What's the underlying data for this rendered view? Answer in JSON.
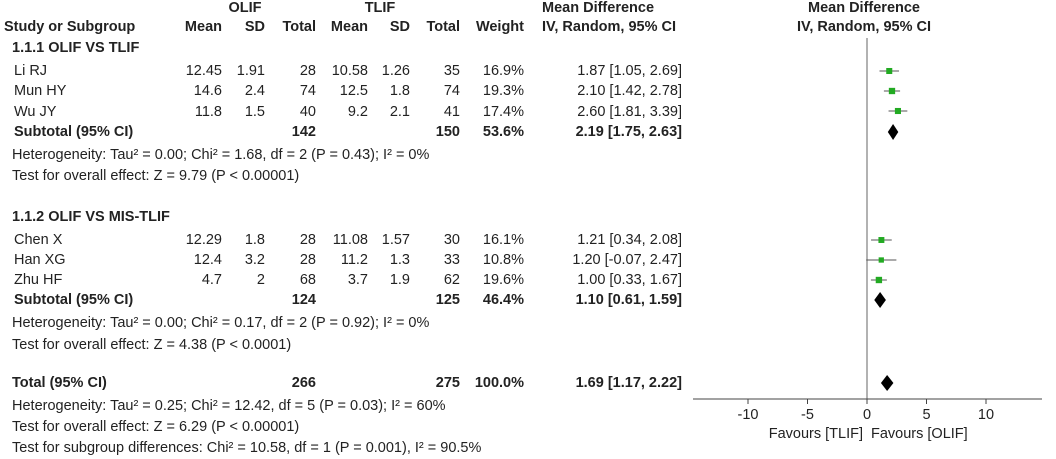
{
  "header": {
    "group1": "OLIF",
    "group2": "TLIF",
    "md_title_table": "Mean Difference",
    "md_sub_table": "IV, Random, 95% CI",
    "md_title_plot": "Mean Difference",
    "md_sub_plot": "IV, Random, 95% CI",
    "cols": {
      "study": "Study or Subgroup",
      "mean1": "Mean",
      "sd1": "SD",
      "total1": "Total",
      "mean2": "Mean",
      "sd2": "SD",
      "total2": "Total",
      "weight": "Weight"
    }
  },
  "subgroups": [
    {
      "title": "1.1.1 OLIF VS TLIF",
      "studies": [
        {
          "name": "Li RJ",
          "mean1": "12.45",
          "sd1": "1.91",
          "n1": "28",
          "mean2": "10.58",
          "sd2": "1.26",
          "n2": "35",
          "weight": "16.9%",
          "ci": "1.87 [1.05, 2.69]"
        },
        {
          "name": "Mun HY",
          "mean1": "14.6",
          "sd1": "2.4",
          "n1": "74",
          "mean2": "12.5",
          "sd2": "1.8",
          "n2": "74",
          "weight": "19.3%",
          "ci": "2.10 [1.42, 2.78]"
        },
        {
          "name": "Wu JY",
          "mean1": "11.8",
          "sd1": "1.5",
          "n1": "40",
          "mean2": "9.2",
          "sd2": "2.1",
          "n2": "41",
          "weight": "17.4%",
          "ci": "2.60 [1.81, 3.39]"
        }
      ],
      "subtotal": {
        "label": "Subtotal (95% CI)",
        "n1": "142",
        "n2": "150",
        "weight": "53.6%",
        "ci": "2.19 [1.75, 2.63]"
      },
      "heterogeneity": "Heterogeneity: Tau² = 0.00; Chi² = 1.68, df = 2 (P = 0.43); I² = 0%",
      "overall": "Test for overall effect: Z = 9.79 (P < 0.00001)"
    },
    {
      "title": "1.1.2 OLIF VS MIS-TLIF",
      "studies": [
        {
          "name": "Chen X",
          "mean1": "12.29",
          "sd1": "1.8",
          "n1": "28",
          "mean2": "11.08",
          "sd2": "1.57",
          "n2": "30",
          "weight": "16.1%",
          "ci": "1.21 [0.34, 2.08]"
        },
        {
          "name": "Han XG",
          "mean1": "12.4",
          "sd1": "3.2",
          "n1": "28",
          "mean2": "11.2",
          "sd2": "1.3",
          "n2": "33",
          "weight": "10.8%",
          "ci": "1.20 [-0.07, 2.47]"
        },
        {
          "name": "Zhu HF",
          "mean1": "4.7",
          "sd1": "2",
          "n1": "68",
          "mean2": "3.7",
          "sd2": "1.9",
          "n2": "62",
          "weight": "19.6%",
          "ci": "1.00 [0.33, 1.67]"
        }
      ],
      "subtotal": {
        "label": "Subtotal (95% CI)",
        "n1": "124",
        "n2": "125",
        "weight": "46.4%",
        "ci": "1.10 [0.61, 1.59]"
      },
      "heterogeneity": "Heterogeneity: Tau² = 0.00; Chi² = 0.17, df = 2 (P = 0.92); I² = 0%",
      "overall": "Test for overall effect: Z = 4.38 (P < 0.0001)"
    }
  ],
  "total": {
    "label": "Total (95% CI)",
    "n1": "266",
    "n2": "275",
    "weight": "100.0%",
    "ci": "1.69 [1.17, 2.22]",
    "heterogeneity": "Heterogeneity: Tau² = 0.25; Chi² = 12.42, df = 5 (P = 0.03); I² = 60%",
    "overall": "Test for overall effect: Z = 6.29 (P < 0.00001)",
    "subgroup_diff": "Test for subgroup differences: Chi² = 10.58, df = 1 (P = 0.001), I² = 90.5%"
  },
  "chart_data": {
    "type": "forest",
    "xlim": [
      -10,
      10
    ],
    "ticks": [
      -10,
      -5,
      0,
      5,
      10
    ],
    "tick_labels": [
      "-10",
      "-5",
      "0",
      "5",
      "10"
    ],
    "favours_left": "Favours [TLIF]",
    "favours_right": "Favours [OLIF]",
    "studies": [
      {
        "name": "Li RJ",
        "md": 1.87,
        "lo": 1.05,
        "hi": 2.69,
        "weight": 16.9
      },
      {
        "name": "Mun HY",
        "md": 2.1,
        "lo": 1.42,
        "hi": 2.78,
        "weight": 19.3
      },
      {
        "name": "Wu JY",
        "md": 2.6,
        "lo": 1.81,
        "hi": 3.39,
        "weight": 17.4
      },
      {
        "name": "Chen X",
        "md": 1.21,
        "lo": 0.34,
        "hi": 2.08,
        "weight": 16.1
      },
      {
        "name": "Han XG",
        "md": 1.2,
        "lo": -0.07,
        "hi": 2.47,
        "weight": 10.8
      },
      {
        "name": "Zhu HF",
        "md": 1.0,
        "lo": 0.33,
        "hi": 1.67,
        "weight": 19.6
      }
    ],
    "summaries": [
      {
        "name": "Subtotal 1.1.1",
        "md": 2.19,
        "lo": 1.75,
        "hi": 2.63
      },
      {
        "name": "Subtotal 1.1.2",
        "md": 1.1,
        "lo": 0.61,
        "hi": 1.59
      },
      {
        "name": "Total",
        "md": 1.69,
        "lo": 1.17,
        "hi": 2.22
      }
    ],
    "colors": {
      "study_marker": "#22aa22",
      "summary_marker": "#000000",
      "ci_line": "#555555"
    }
  }
}
